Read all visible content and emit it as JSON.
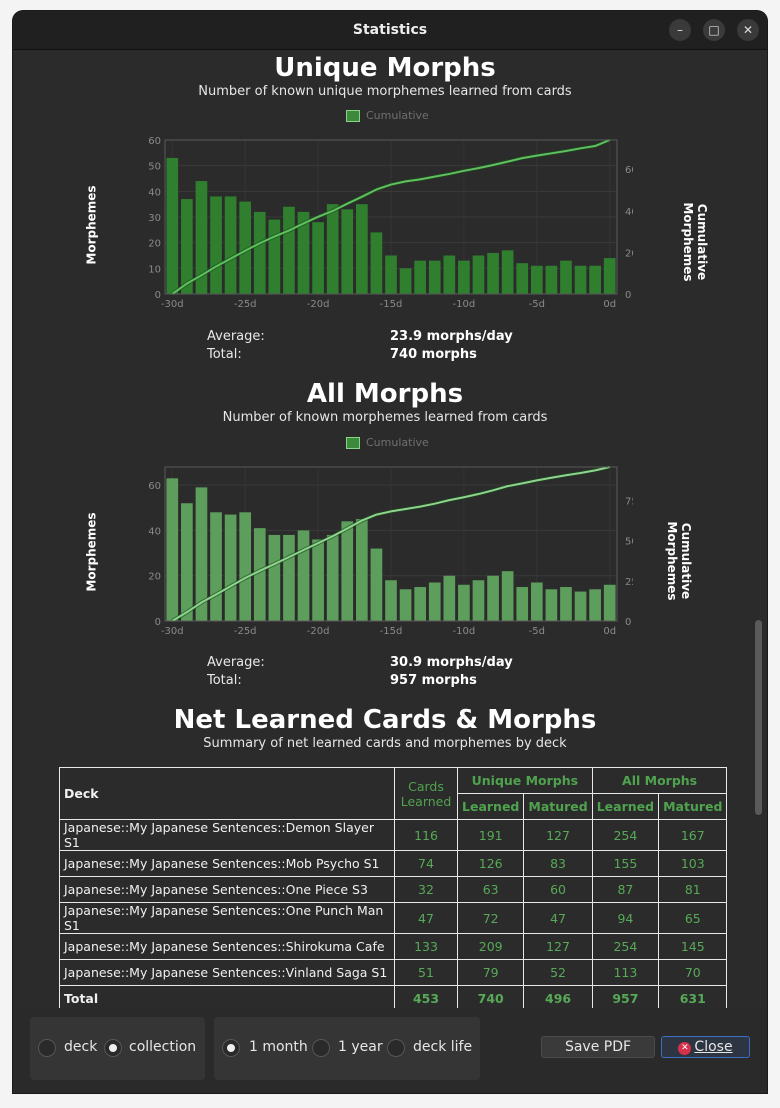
{
  "window": {
    "title": "Statistics",
    "minimize": "–",
    "maximize": "□",
    "close": "✕"
  },
  "unique": {
    "title": "Unique Morphs",
    "subtitle": "Number of known unique morphemes learned from cards",
    "legend": "Cumulative",
    "ylabel_left": "Morphemes",
    "ylabel_right": [
      "Cumulative",
      "Morphemes"
    ],
    "average_label": "Average:",
    "average_value": "23.9 morphs/day",
    "total_label": "Total:",
    "total_value": "740 morphs"
  },
  "all": {
    "title": "All Morphs",
    "subtitle": "Number of known morphemes learned from cards",
    "legend": "Cumulative",
    "ylabel_left": "Morphemes",
    "ylabel_right": [
      "Cumulative",
      "Morphemes"
    ],
    "average_label": "Average:",
    "average_value": "30.9 morphs/day",
    "total_label": "Total:",
    "total_value": "957 morphs"
  },
  "net": {
    "title": "Net Learned Cards & Morphs",
    "subtitle": "Summary of net learned cards and morphemes by deck",
    "headers": {
      "deck": "Deck",
      "cards": [
        "Cards",
        "Learned"
      ],
      "unique": "Unique Morphs",
      "all": "All Morphs",
      "learned": "Learned",
      "matured": "Matured"
    },
    "rows": [
      {
        "deck": "Japanese::My Japanese Sentences::Demon Slayer S1",
        "cards": "116",
        "u_learned": "191",
        "u_matured": "127",
        "a_learned": "254",
        "a_matured": "167"
      },
      {
        "deck": "Japanese::My Japanese Sentences::Mob Psycho S1",
        "cards": "74",
        "u_learned": "126",
        "u_matured": "83",
        "a_learned": "155",
        "a_matured": "103"
      },
      {
        "deck": "Japanese::My Japanese Sentences::One Piece S3",
        "cards": "32",
        "u_learned": "63",
        "u_matured": "60",
        "a_learned": "87",
        "a_matured": "81"
      },
      {
        "deck": "Japanese::My Japanese Sentences::One Punch Man S1",
        "cards": "47",
        "u_learned": "72",
        "u_matured": "47",
        "a_learned": "94",
        "a_matured": "65"
      },
      {
        "deck": "Japanese::My Japanese Sentences::Shirokuma Cafe",
        "cards": "133",
        "u_learned": "209",
        "u_matured": "127",
        "a_learned": "254",
        "a_matured": "145"
      },
      {
        "deck": "Japanese::My Japanese Sentences::Vinland Saga S1",
        "cards": "51",
        "u_learned": "79",
        "u_matured": "52",
        "a_learned": "113",
        "a_matured": "70"
      }
    ],
    "total": {
      "deck": "Total",
      "cards": "453",
      "u_learned": "740",
      "u_matured": "496",
      "a_learned": "957",
      "a_matured": "631"
    }
  },
  "scope": {
    "deck": "deck",
    "collection": "collection",
    "selected": "collection"
  },
  "period": {
    "month": "1 month",
    "year": "1 year",
    "life": "deck life",
    "selected": "1 month"
  },
  "buttons": {
    "save_pdf": "Save PDF",
    "close": "Close"
  },
  "colors": {
    "accent": "#4fa34f",
    "bar_unique": "#2f7f2f",
    "bar_all": "#5d9e5d"
  },
  "chart_data": [
    {
      "type": "bar",
      "title": "Unique Morphs",
      "xlabel": "",
      "ylabel": "Morphemes",
      "y2label": "Cumulative Morphemes",
      "x_ticks": [
        "-30d",
        "-25d",
        "-20d",
        "-15d",
        "-10d",
        "-5d",
        "0d"
      ],
      "ylim": [
        0,
        60
      ],
      "y_ticks": [
        0,
        10,
        20,
        30,
        40,
        50,
        60
      ],
      "y2lim": [
        0,
        740
      ],
      "y2_ticks": [
        0,
        200,
        400,
        600
      ],
      "x": [
        -30,
        -29,
        -28,
        -27,
        -26,
        -25,
        -24,
        -23,
        -22,
        -21,
        -20,
        -19,
        -18,
        -17,
        -16,
        -15,
        -14,
        -13,
        -12,
        -11,
        -10,
        -9,
        -8,
        -7,
        -6,
        -5,
        -4,
        -3,
        -2,
        -1,
        0
      ],
      "series": [
        {
          "values": [
            53,
            37,
            44,
            38,
            38,
            36,
            32,
            29,
            34,
            32,
            28,
            35,
            33,
            35,
            24,
            15,
            10,
            13,
            13,
            15,
            13,
            15,
            16,
            17,
            12,
            11,
            11,
            13,
            11,
            11,
            14
          ]
        },
        {
          "name": "Cumulative",
          "type": "line",
          "axis": "right",
          "values": [
            0,
            50,
            90,
            132,
            170,
            208,
            244,
            276,
            305,
            339,
            371,
            399,
            434,
            467,
            502,
            526,
            541,
            551,
            564,
            577,
            592,
            605,
            620,
            636,
            653,
            665,
            676,
            687,
            700,
            711,
            740
          ]
        }
      ]
    },
    {
      "type": "bar",
      "title": "All Morphs",
      "xlabel": "",
      "ylabel": "Morphemes",
      "y2label": "Cumulative Morphemes",
      "x_ticks": [
        "-30d",
        "-25d",
        "-20d",
        "-15d",
        "-10d",
        "-5d",
        "0d"
      ],
      "ylim": [
        0,
        68
      ],
      "y_ticks": [
        0,
        20,
        40,
        60
      ],
      "y2lim": [
        0,
        957
      ],
      "y2_ticks": [
        0,
        250,
        500,
        750
      ],
      "x": [
        -30,
        -29,
        -28,
        -27,
        -26,
        -25,
        -24,
        -23,
        -22,
        -21,
        -20,
        -19,
        -18,
        -17,
        -16,
        -15,
        -14,
        -13,
        -12,
        -11,
        -10,
        -9,
        -8,
        -7,
        -6,
        -5,
        -4,
        -3,
        -2,
        -1,
        0
      ],
      "series": [
        {
          "values": [
            63,
            52,
            59,
            48,
            47,
            48,
            41,
            38,
            38,
            40,
            36,
            38,
            44,
            45,
            32,
            18,
            14,
            15,
            17,
            20,
            16,
            18,
            20,
            22,
            15,
            17,
            14,
            15,
            13,
            14,
            16
          ]
        },
        {
          "name": "Cumulative",
          "type": "line",
          "axis": "right",
          "values": [
            0,
            55,
            115,
            165,
            216,
            267,
            312,
            354,
            397,
            441,
            484,
            527,
            575,
            624,
            661,
            681,
            696,
            711,
            729,
            751,
            769,
            789,
            812,
            838,
            855,
            874,
            890,
            906,
            920,
            936,
            957
          ]
        }
      ]
    }
  ]
}
